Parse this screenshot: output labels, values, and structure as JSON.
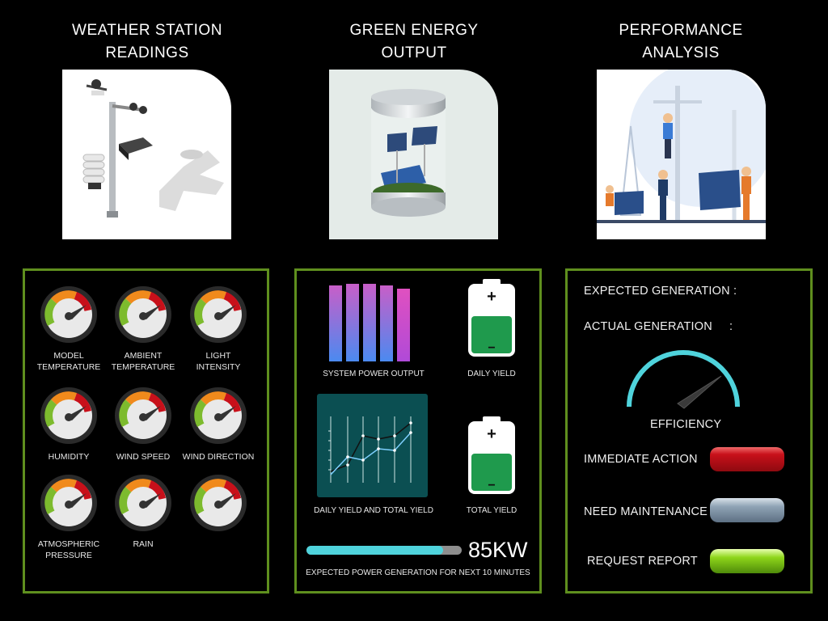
{
  "titles": {
    "weather": [
      "WEATHER STATION",
      "READINGS"
    ],
    "energy": [
      "GREEN ENERGY",
      "OUTPUT"
    ],
    "performance": [
      "PERFORMANCE",
      "ANALYSIS"
    ]
  },
  "weather_panel": {
    "gauges": [
      {
        "label1": "MODEL",
        "label2": "TEMPERATURE"
      },
      {
        "label1": "AMBIENT",
        "label2": "TEMPERATURE"
      },
      {
        "label1": "LIGHT",
        "label2": "INTENSITY"
      },
      {
        "label1": "HUMIDITY",
        "label2": ""
      },
      {
        "label1": "WIND SPEED",
        "label2": ""
      },
      {
        "label1": "WIND DIRECTION",
        "label2": ""
      },
      {
        "label1": "ATMOSPHERIC",
        "label2": "PRESSURE"
      },
      {
        "label1": "RAIN",
        "label2": ""
      },
      {
        "label1": "",
        "label2": ""
      }
    ]
  },
  "energy_panel": {
    "system_power_output": "SYSTEM POWER OUTPUT",
    "daily_yield": "DAILY YIELD",
    "daily_total_chart": "DAILY YIELD AND TOTAL YIELD",
    "total_yield": "TOTAL YIELD",
    "power_value": "85KW",
    "power_caption": "EXPECTED POWER GENERATION FOR NEXT 10 MINUTES",
    "power_progress": 0.88,
    "battery_plus": "+",
    "battery_minus": "−"
  },
  "performance_panel": {
    "expected": "EXPECTED GENERATION :",
    "actual": "ACTUAL GENERATION     :",
    "efficiency": "EFFICIENCY",
    "immediate_action": "IMMEDIATE ACTION",
    "need_maintenance": "NEED MAINTENANCE",
    "request_report": "REQUEST REPORT"
  },
  "colors": {
    "panel_border": "#5f8f1e",
    "btn_red": "#c8101a",
    "btn_gray": "#8fa3b5",
    "btn_green": "#8ed61a",
    "gauge_cyan": "#4fd3dc",
    "battery_green": "#1f9a4d",
    "chart_bg": "#0b4f52"
  }
}
